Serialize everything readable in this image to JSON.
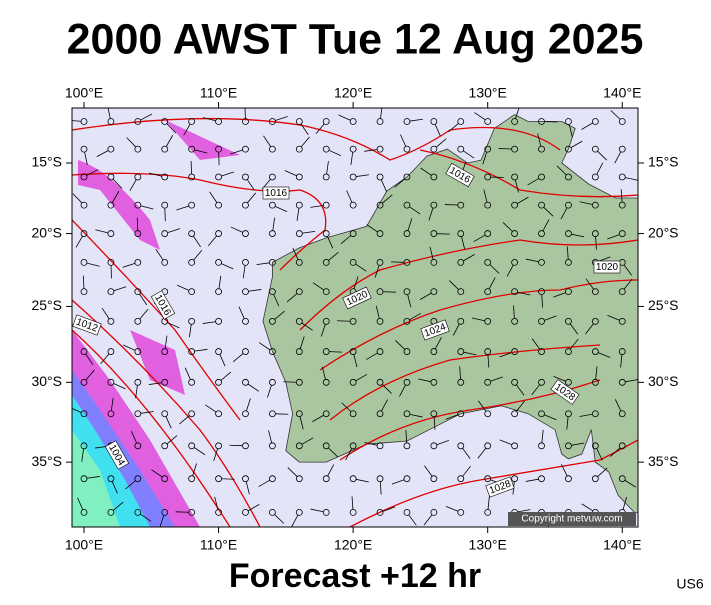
{
  "header": {
    "title": "2000 AWST Tue 12 Aug 2025"
  },
  "footer": {
    "forecast": "Forecast +12 hr",
    "code": "US6"
  },
  "map": {
    "lon_ticks": [
      {
        "value": 100,
        "label": "100°E"
      },
      {
        "value": 110,
        "label": "110°E"
      },
      {
        "value": 120,
        "label": "120°E"
      },
      {
        "value": 130,
        "label": "130°E"
      },
      {
        "value": 140,
        "label": "140°E"
      }
    ],
    "lat_ticks": [
      {
        "value": -15,
        "label": "15°S"
      },
      {
        "value": -20,
        "label": "20°S"
      },
      {
        "value": -25,
        "label": "25°S"
      },
      {
        "value": -30,
        "label": "30°S"
      },
      {
        "value": -35,
        "label": "35°S"
      }
    ],
    "isobar_labels": [
      "1016",
      "1016",
      "1020",
      "1024",
      "1028",
      "1028",
      "1016",
      "1012",
      "1004",
      "1020"
    ],
    "copyright": "Copyright metvuw.com"
  }
}
